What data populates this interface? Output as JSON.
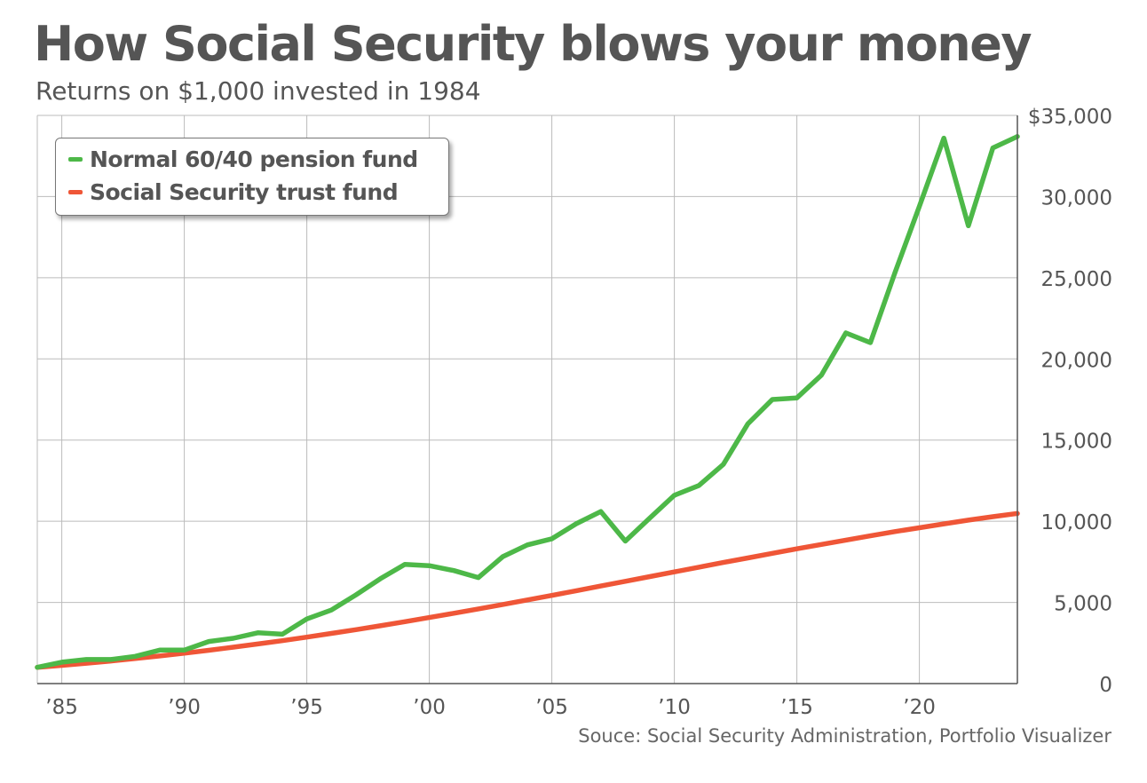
{
  "title": "How Social Security blows your money",
  "subtitle": "Returns on $1,000 invested in 1984",
  "source": "Souce: Social Security Administration, Portfolio Visualizer",
  "colors": {
    "pension": "#4db848",
    "trust": "#ef5637",
    "grid": "#bbbbbb",
    "text": "#555555"
  },
  "chart_data": {
    "type": "line",
    "x": [
      1984,
      1985,
      1986,
      1987,
      1988,
      1989,
      1990,
      1991,
      1992,
      1993,
      1994,
      1995,
      1996,
      1997,
      1998,
      1999,
      2000,
      2001,
      2002,
      2003,
      2004,
      2005,
      2006,
      2007,
      2008,
      2009,
      2010,
      2011,
      2012,
      2013,
      2014,
      2015,
      2016,
      2017,
      2018,
      2019,
      2020,
      2021,
      2022,
      2023,
      2024
    ],
    "series": [
      {
        "name": "Normal 60/40 pension fund",
        "color": "#4db848",
        "values": [
          1000,
          1320,
          1480,
          1480,
          1680,
          2060,
          2060,
          2590,
          2790,
          3130,
          3040,
          3980,
          4530,
          5460,
          6460,
          7340,
          7260,
          6960,
          6530,
          7820,
          8540,
          8920,
          9850,
          10600,
          8780,
          10200,
          11600,
          12200,
          13500,
          16000,
          17500,
          17600,
          19000,
          21600,
          21000,
          25300,
          29400,
          33600,
          28200,
          33000,
          33700
        ]
      },
      {
        "name": "Social Security trust fund",
        "color": "#ef5637",
        "values": [
          1000,
          1120,
          1250,
          1390,
          1540,
          1700,
          1870,
          2050,
          2240,
          2440,
          2640,
          2860,
          3090,
          3320,
          3560,
          3810,
          4070,
          4330,
          4600,
          4870,
          5150,
          5430,
          5720,
          6010,
          6300,
          6590,
          6880,
          7170,
          7460,
          7740,
          8020,
          8300,
          8570,
          8840,
          9100,
          9360,
          9600,
          9840,
          10070,
          10280,
          10480
        ]
      }
    ],
    "x_tick_labels": [
      "’85",
      "’90",
      "’95",
      "’00",
      "’05",
      "’10",
      "’15",
      "’20"
    ],
    "x_tick_values": [
      1985,
      1990,
      1995,
      2000,
      2005,
      2010,
      2015,
      2020
    ],
    "y_tick_labels": [
      "0",
      "5,000",
      "10,000",
      "15,000",
      "20,000",
      "25,000",
      "30,000",
      "$35,000"
    ],
    "y_tick_values": [
      0,
      5000,
      10000,
      15000,
      20000,
      25000,
      30000,
      35000
    ],
    "xlim": [
      1984,
      2024
    ],
    "ylim": [
      0,
      35000
    ],
    "grid": true,
    "y_axis_side": "right",
    "legend": "top-left"
  }
}
